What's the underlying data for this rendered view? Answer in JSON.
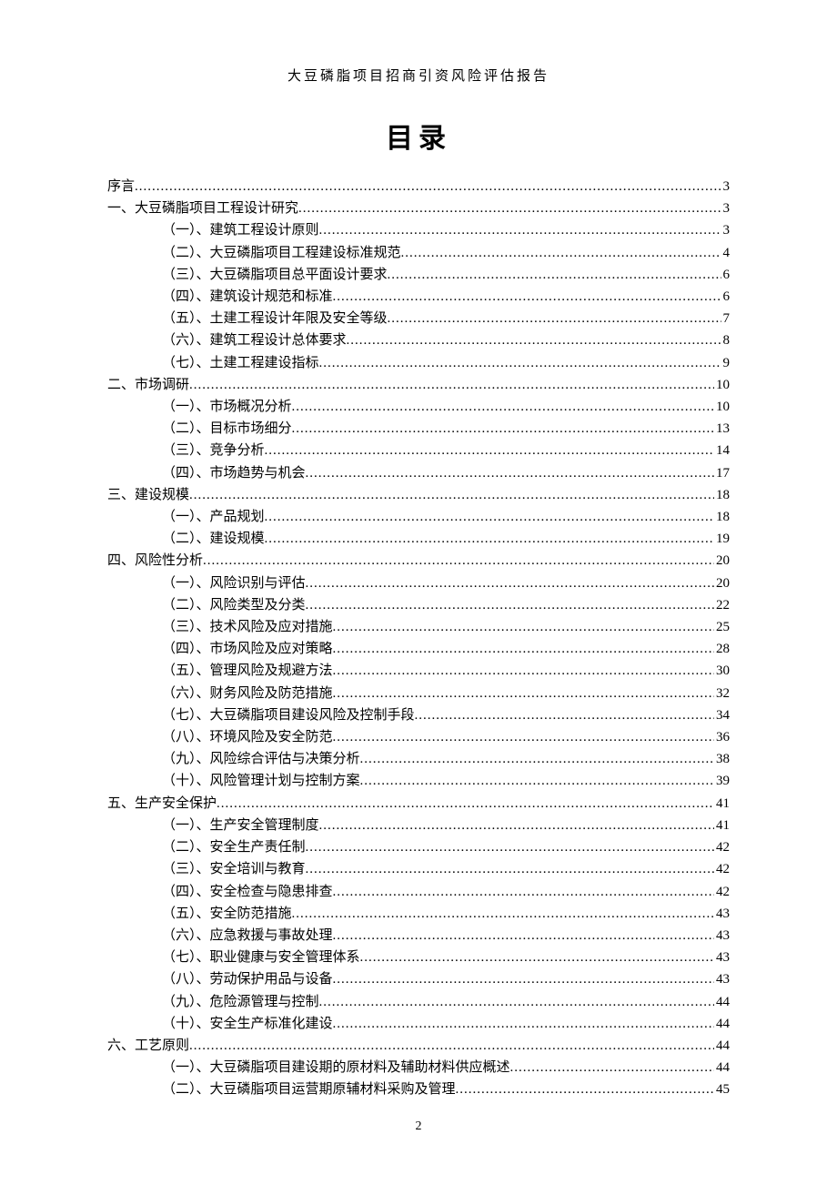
{
  "header": "大豆磷脂项目招商引资风险评估报告",
  "title": "目录",
  "page_number": "2",
  "toc": [
    {
      "level": 1,
      "label": "序言",
      "page": "3"
    },
    {
      "level": 1,
      "label": "一、大豆磷脂项目工程设计研究",
      "page": "3"
    },
    {
      "level": 2,
      "label": "（一）、建筑工程设计原则",
      "page": "3"
    },
    {
      "level": 2,
      "label": "（二）、大豆磷脂项目工程建设标准规范",
      "page": "4"
    },
    {
      "level": 2,
      "label": "（三）、大豆磷脂项目总平面设计要求",
      "page": "6"
    },
    {
      "level": 2,
      "label": "（四）、建筑设计规范和标准",
      "page": "6"
    },
    {
      "level": 2,
      "label": "（五）、土建工程设计年限及安全等级",
      "page": "7"
    },
    {
      "level": 2,
      "label": "（六）、建筑工程设计总体要求",
      "page": "8"
    },
    {
      "level": 2,
      "label": "（七）、土建工程建设指标",
      "page": "9"
    },
    {
      "level": 1,
      "label": "二、市场调研",
      "page": "10"
    },
    {
      "level": 2,
      "label": "（一）、市场概况分析",
      "page": "10"
    },
    {
      "level": 2,
      "label": "（二）、目标市场细分",
      "page": "13"
    },
    {
      "level": 2,
      "label": "（三）、竞争分析",
      "page": "14"
    },
    {
      "level": 2,
      "label": "（四）、市场趋势与机会",
      "page": "17"
    },
    {
      "level": 1,
      "label": "三、建设规模",
      "page": "18"
    },
    {
      "level": 2,
      "label": "（一）、产品规划",
      "page": "18"
    },
    {
      "level": 2,
      "label": "（二）、建设规模",
      "page": "19"
    },
    {
      "level": 1,
      "label": "四、风险性分析",
      "page": "20"
    },
    {
      "level": 2,
      "label": "（一）、风险识别与评估",
      "page": "20"
    },
    {
      "level": 2,
      "label": "（二）、风险类型及分类",
      "page": "22"
    },
    {
      "level": 2,
      "label": "（三）、技术风险及应对措施",
      "page": "25"
    },
    {
      "level": 2,
      "label": "（四）、市场风险及应对策略",
      "page": "28"
    },
    {
      "level": 2,
      "label": "（五）、管理风险及规避方法",
      "page": "30"
    },
    {
      "level": 2,
      "label": "（六）、财务风险及防范措施",
      "page": "32"
    },
    {
      "level": 2,
      "label": "（七）、大豆磷脂项目建设风险及控制手段",
      "page": "34"
    },
    {
      "level": 2,
      "label": "（八）、环境风险及安全防范",
      "page": "36"
    },
    {
      "level": 2,
      "label": "（九）、风险综合评估与决策分析",
      "page": "38"
    },
    {
      "level": 2,
      "label": "（十）、风险管理计划与控制方案",
      "page": "39"
    },
    {
      "level": 1,
      "label": "五、生产安全保护",
      "page": "41"
    },
    {
      "level": 2,
      "label": "（一）、生产安全管理制度",
      "page": "41"
    },
    {
      "level": 2,
      "label": "（二）、安全生产责任制",
      "page": "42"
    },
    {
      "level": 2,
      "label": "（三）、安全培训与教育",
      "page": "42"
    },
    {
      "level": 2,
      "label": "（四）、安全检查与隐患排查",
      "page": "42"
    },
    {
      "level": 2,
      "label": "（五）、安全防范措施",
      "page": "43"
    },
    {
      "level": 2,
      "label": "（六）、应急救援与事故处理",
      "page": "43"
    },
    {
      "level": 2,
      "label": "（七）、职业健康与安全管理体系",
      "page": "43"
    },
    {
      "level": 2,
      "label": "（八）、劳动保护用品与设备",
      "page": "43"
    },
    {
      "level": 2,
      "label": "（九）、危险源管理与控制",
      "page": "44"
    },
    {
      "level": 2,
      "label": "（十）、安全生产标准化建设",
      "page": "44"
    },
    {
      "level": 1,
      "label": "六、工艺原则",
      "page": "44"
    },
    {
      "level": 2,
      "label": "（一）、大豆磷脂项目建设期的原材料及辅助材料供应概述",
      "page": "44"
    },
    {
      "level": 2,
      "label": "（二）、大豆磷脂项目运营期原辅材料采购及管理",
      "page": "45"
    }
  ]
}
